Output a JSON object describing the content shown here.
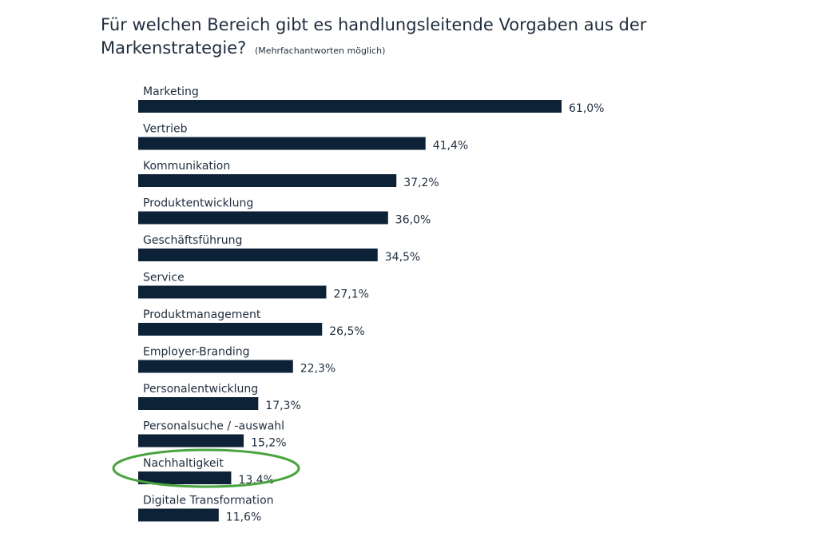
{
  "page": {
    "title": "Für welchen Bereich gibt es handlungsleitende Vorgaben aus der Markenstrategie?",
    "subtitle": "(Mehrfachantworten möglich)"
  },
  "chart_data": {
    "type": "bar",
    "orientation": "horizontal",
    "title": "Für welchen Bereich gibt es handlungsleitende Vorgaben aus der Markenstrategie?",
    "subtitle": "(Mehrfachantworten möglich)",
    "categories": [
      "Marketing",
      "Vertrieb",
      "Kommunikation",
      "Produktentwicklung",
      "Geschäftsführung",
      "Service",
      "Produktmanagement",
      "Employer-Branding",
      "Personalentwicklung",
      "Personalsuche / -auswahl",
      "Nachhaltigkeit",
      "Digitale Transformation"
    ],
    "values": [
      61.0,
      41.4,
      37.2,
      36.0,
      34.5,
      27.1,
      26.5,
      22.3,
      17.3,
      15.2,
      13.4,
      11.6
    ],
    "value_labels": [
      "61,0%",
      "41,4%",
      "37,2%",
      "36,0%",
      "34,5%",
      "27,1%",
      "26,5%",
      "22,3%",
      "17,3%",
      "15,2%",
      "13,4%",
      "11,6%"
    ],
    "unit": "%",
    "xlim": [
      0,
      61.0
    ],
    "grid": false,
    "legend": "none",
    "bar_color": "#0d2237",
    "highlight": {
      "category": "Nachhaltigkeit",
      "shape": "ellipse",
      "color": "#4aa541"
    }
  }
}
